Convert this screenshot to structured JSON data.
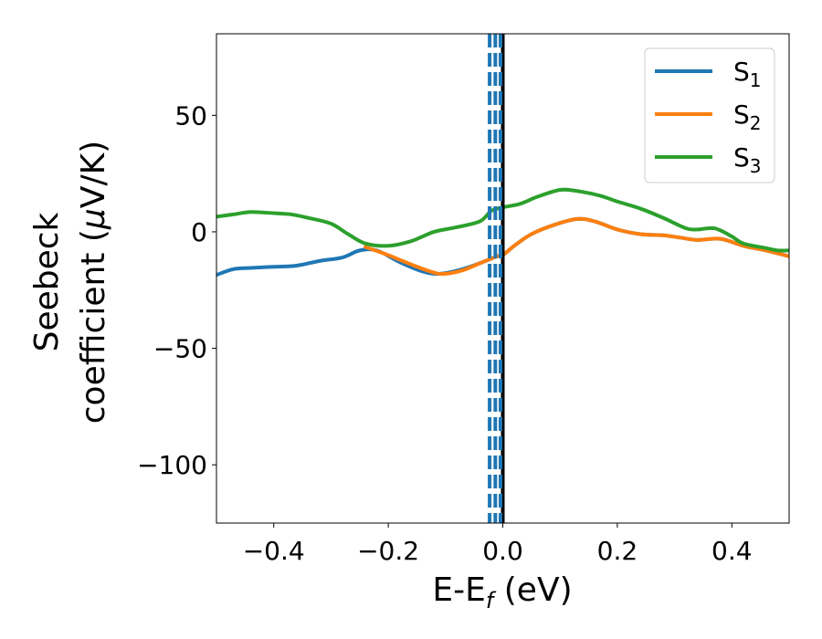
{
  "chart_data": {
    "type": "line",
    "title": "",
    "xlabel": {
      "main": "E-E",
      "sub": "f",
      "suffix": " (eV)"
    },
    "ylabel": {
      "line1": "Seebeck",
      "line2_prefix": "coefficient  (",
      "mu": "μ",
      "line2_suffix": "V/K)"
    },
    "xlim": [
      -0.5,
      0.5
    ],
    "ylim": [
      -125,
      85
    ],
    "xticks": [
      -0.4,
      -0.2,
      0.0,
      0.2,
      0.4
    ],
    "xtick_labels": [
      "−0.4",
      "−0.2",
      "0.0",
      "0.2",
      "0.4"
    ],
    "yticks": [
      -100,
      -50,
      0,
      50
    ],
    "ytick_labels": [
      "−100",
      "−50",
      "0",
      "50"
    ],
    "grid": false,
    "legend_position": "top-right",
    "series": [
      {
        "name": "S",
        "sub": "1",
        "color": "#1f77b4",
        "points": [
          [
            -0.5,
            -18.5
          ],
          [
            -0.47,
            -16
          ],
          [
            -0.44,
            -15.5
          ],
          [
            -0.4,
            -15
          ],
          [
            -0.36,
            -14.5
          ],
          [
            -0.32,
            -12.5
          ],
          [
            -0.28,
            -11
          ],
          [
            -0.25,
            -8
          ],
          [
            -0.22,
            -8
          ],
          [
            -0.18,
            -13
          ],
          [
            -0.14,
            -17
          ],
          [
            -0.11,
            -18
          ],
          [
            -0.07,
            -16
          ],
          [
            -0.03,
            -12.5
          ],
          [
            -0.01,
            -10.5
          ],
          [
            0.0,
            -10
          ],
          [
            0.02,
            -6
          ],
          [
            0.05,
            -1
          ],
          [
            0.09,
            3
          ],
          [
            0.13,
            5.5
          ],
          [
            0.16,
            4.5
          ],
          [
            0.2,
            1
          ],
          [
            0.24,
            -1
          ],
          [
            0.28,
            -1.5
          ],
          [
            0.31,
            -2.5
          ],
          [
            0.34,
            -3.5
          ],
          [
            0.38,
            -3
          ],
          [
            0.42,
            -6
          ],
          [
            0.46,
            -8
          ],
          [
            0.5,
            -10.5
          ]
        ]
      },
      {
        "name": "S",
        "sub": "2",
        "color": "#ff7f0e",
        "points": [
          [
            -0.24,
            -6.5
          ],
          [
            -0.2,
            -10
          ],
          [
            -0.16,
            -14
          ],
          [
            -0.12,
            -17.5
          ],
          [
            -0.1,
            -18
          ],
          [
            -0.07,
            -16.5
          ],
          [
            -0.04,
            -13.5
          ],
          [
            -0.01,
            -10.5
          ],
          [
            0.0,
            -10
          ],
          [
            0.02,
            -6
          ],
          [
            0.05,
            -1
          ],
          [
            0.09,
            3
          ],
          [
            0.13,
            5.5
          ],
          [
            0.16,
            4.5
          ],
          [
            0.2,
            1
          ],
          [
            0.24,
            -1
          ],
          [
            0.28,
            -1.5
          ],
          [
            0.31,
            -2.5
          ],
          [
            0.34,
            -3.5
          ],
          [
            0.38,
            -3
          ],
          [
            0.42,
            -6
          ],
          [
            0.46,
            -8
          ],
          [
            0.5,
            -10.5
          ]
        ]
      },
      {
        "name": "S",
        "sub": "3",
        "color": "#2ca02c",
        "points": [
          [
            -0.5,
            6.5
          ],
          [
            -0.47,
            7.5
          ],
          [
            -0.44,
            8.5
          ],
          [
            -0.4,
            8
          ],
          [
            -0.37,
            7.5
          ],
          [
            -0.34,
            6
          ],
          [
            -0.3,
            3.5
          ],
          [
            -0.27,
            -1
          ],
          [
            -0.24,
            -5
          ],
          [
            -0.2,
            -6
          ],
          [
            -0.16,
            -4
          ],
          [
            -0.12,
            0
          ],
          [
            -0.08,
            2
          ],
          [
            -0.04,
            4.5
          ],
          [
            -0.02,
            9
          ],
          [
            0.0,
            10.5
          ],
          [
            0.03,
            12
          ],
          [
            0.06,
            15
          ],
          [
            0.1,
            18
          ],
          [
            0.13,
            17.5
          ],
          [
            0.17,
            15.5
          ],
          [
            0.2,
            13
          ],
          [
            0.24,
            10
          ],
          [
            0.28,
            6
          ],
          [
            0.32,
            1.5
          ],
          [
            0.34,
            1
          ],
          [
            0.37,
            1.5
          ],
          [
            0.4,
            -2
          ],
          [
            0.42,
            -5
          ],
          [
            0.46,
            -7
          ],
          [
            0.48,
            -8
          ],
          [
            0.5,
            -8
          ]
        ]
      }
    ],
    "vlines": [
      {
        "x": 0.0,
        "color": "#000000",
        "style": "solid"
      },
      {
        "x": -0.004,
        "color": "#1f77b4",
        "style": "dashed"
      },
      {
        "x": -0.013,
        "color": "#1f77b4",
        "style": "dashed"
      },
      {
        "x": -0.023,
        "color": "#1f77b4",
        "style": "dashed"
      }
    ]
  }
}
